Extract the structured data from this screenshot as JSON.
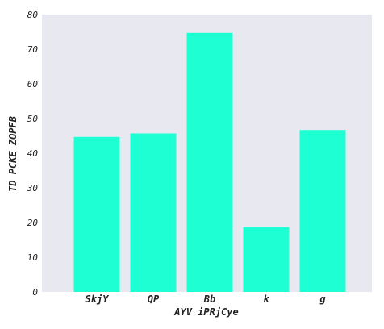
{
  "chart_data": {
    "type": "bar",
    "categories": [
      "SkjY",
      "QP",
      "Bb",
      "k",
      "g"
    ],
    "values": [
      44.7,
      45.7,
      74.7,
      18.7,
      46.7
    ],
    "title": "",
    "xlabel": "AYV iPRjCye",
    "ylabel": "TD PCKE ZOPFB",
    "ylim": [
      0,
      80
    ],
    "yticks": [
      "0",
      "10",
      "20",
      "30",
      "40",
      "50",
      "60",
      "70",
      "80"
    ],
    "grid": false,
    "colors": {
      "bar": "#1effd4",
      "plot_background": "#e8e8f1",
      "text": "#222222"
    }
  }
}
